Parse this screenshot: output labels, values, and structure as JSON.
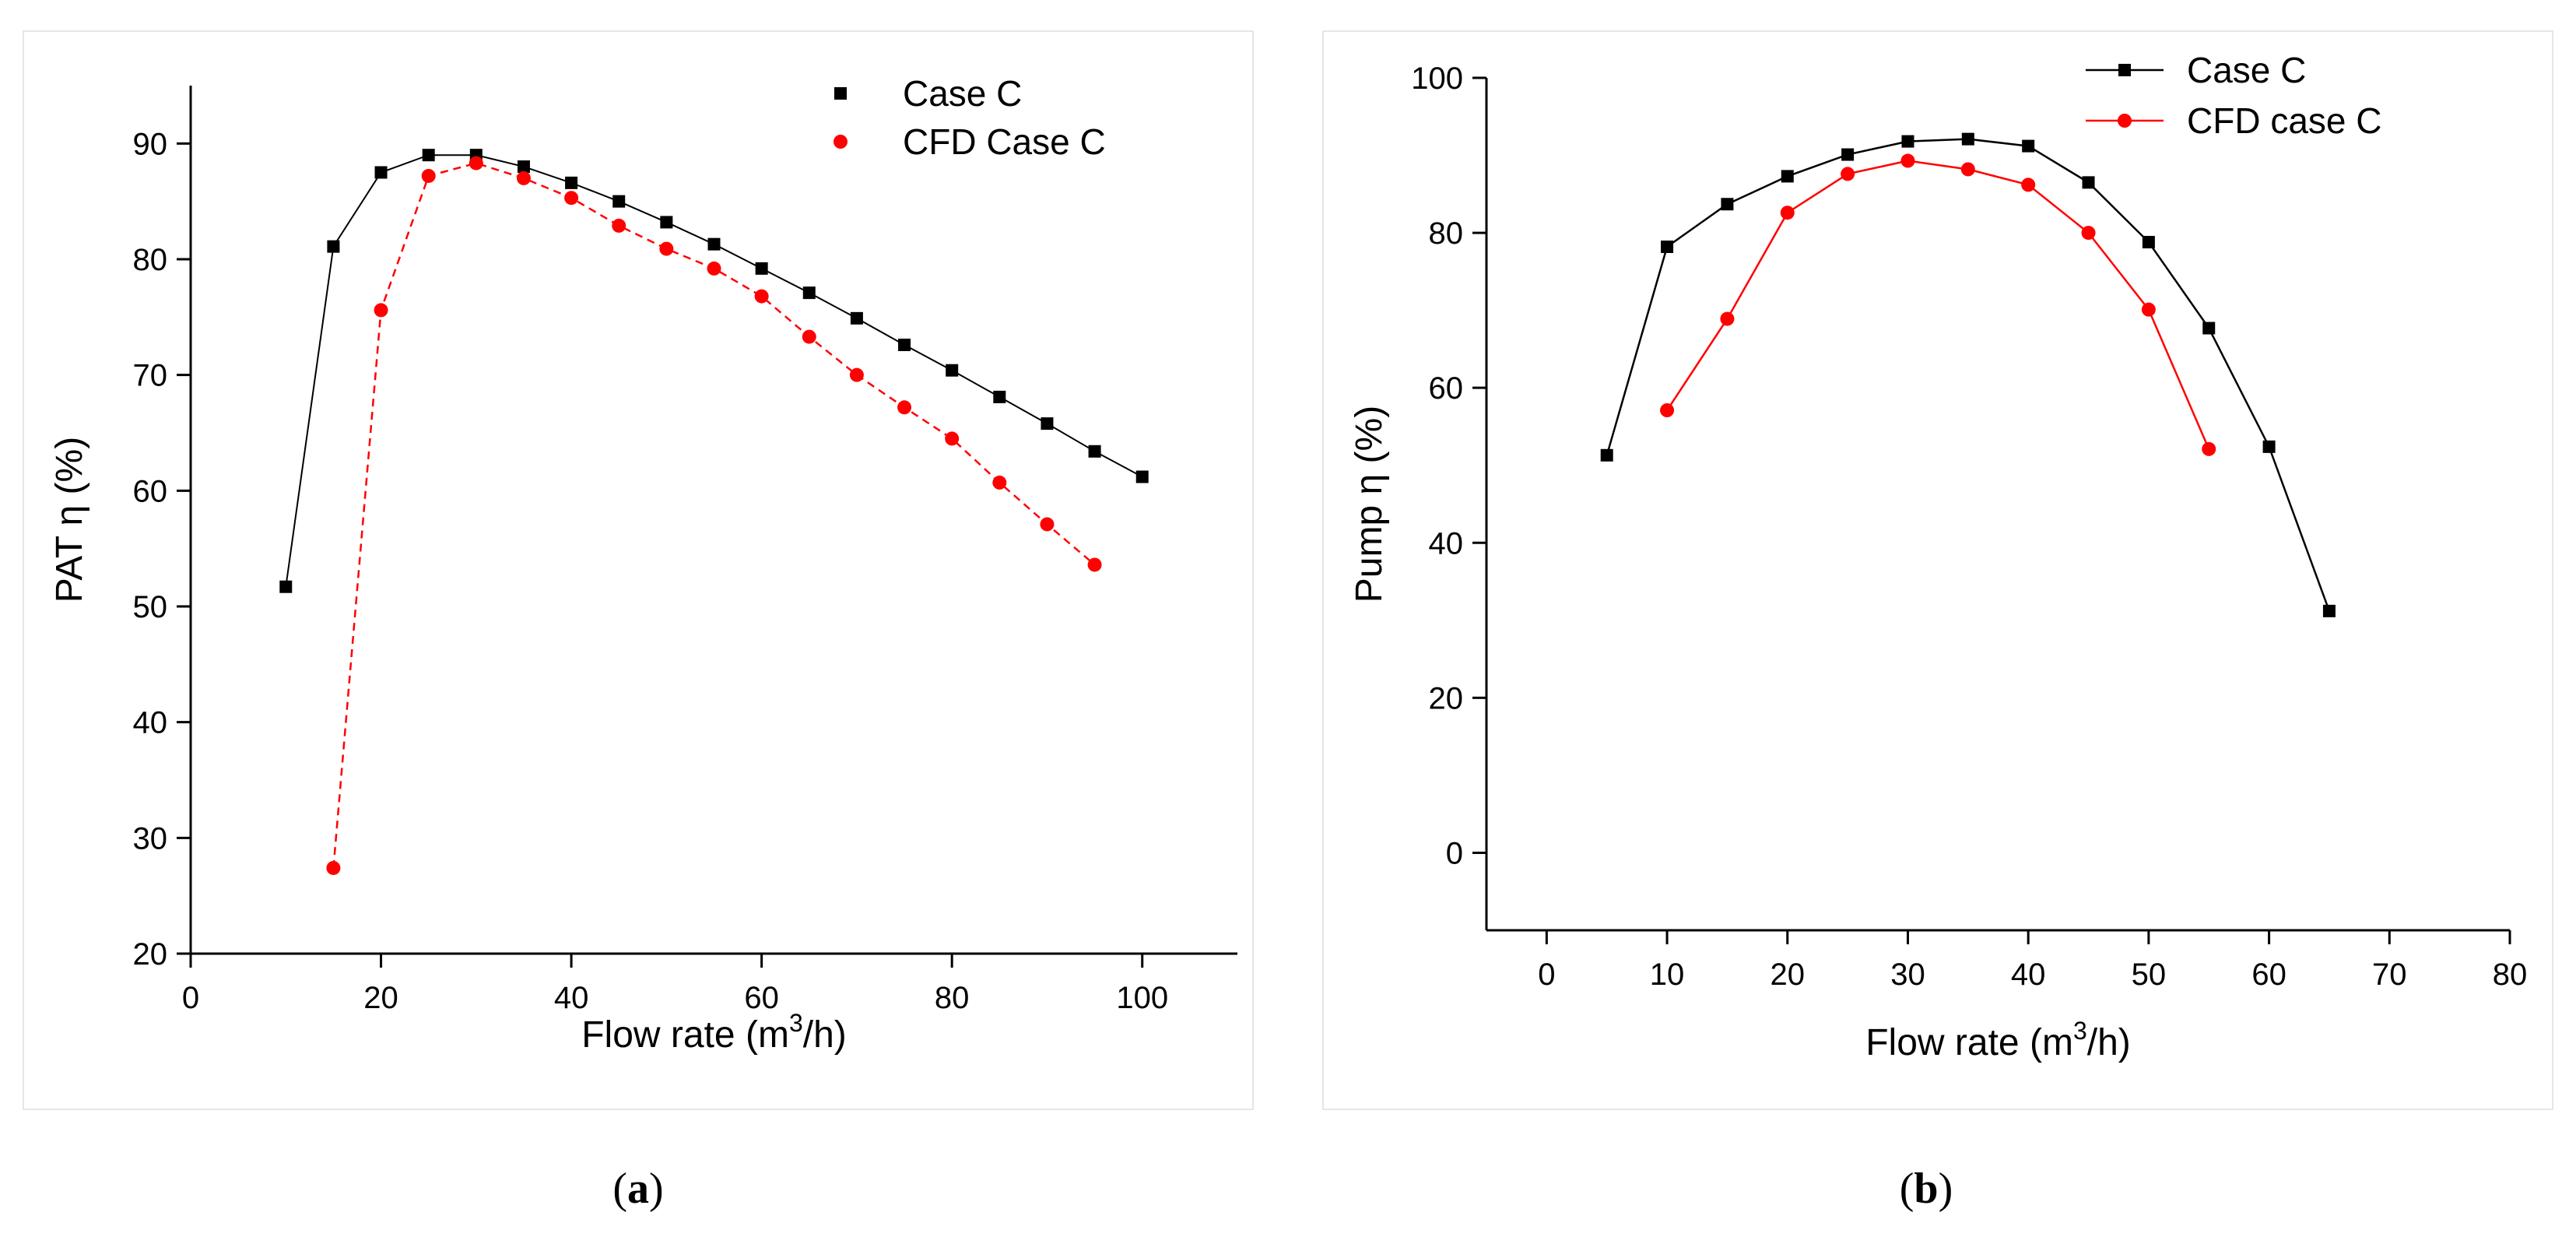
{
  "figure": {
    "captions": [
      "(a)",
      "(b)"
    ]
  },
  "chart_data": [
    {
      "type": "line",
      "panel_label": "a",
      "caption": {
        "open": "(",
        "letter": "a",
        "close": ")"
      },
      "xlabel": {
        "prefix": "Flow rate (m",
        "sup": "3",
        "suffix": "/h)"
      },
      "ylabel": "PAT η (%)",
      "xlim": [
        0,
        110
      ],
      "ylim": [
        20,
        95
      ],
      "xticks": [
        0,
        20,
        40,
        60,
        80,
        100
      ],
      "yticks": [
        20,
        30,
        40,
        50,
        60,
        70,
        80,
        90
      ],
      "legend_position": "top-right",
      "series": [
        {
          "name": "Case C",
          "color": "#000000",
          "marker": "square",
          "line": "solid-thin",
          "x": [
            10,
            15,
            20,
            25,
            30,
            35,
            40,
            45,
            50,
            55,
            60,
            65,
            70,
            75,
            80,
            85,
            90,
            95,
            100
          ],
          "y": [
            51.7,
            81.1,
            87.5,
            89.0,
            89.0,
            88.0,
            86.6,
            85.0,
            83.2,
            81.3,
            79.2,
            77.1,
            74.9,
            72.6,
            70.4,
            68.1,
            65.8,
            63.4,
            61.2
          ]
        },
        {
          "name": "CFD Case C",
          "color": "#ff0000",
          "marker": "circle",
          "line": "dashed",
          "x": [
            15,
            20,
            25,
            30,
            35,
            40,
            45,
            50,
            55,
            60,
            65,
            70,
            75,
            80,
            85,
            90,
            95
          ],
          "y": [
            27.4,
            75.6,
            87.2,
            88.3,
            87.0,
            85.3,
            82.9,
            80.9,
            79.2,
            76.8,
            73.3,
            70.0,
            67.2,
            64.5,
            60.7,
            57.1,
            53.6
          ]
        }
      ]
    },
    {
      "type": "line",
      "panel_label": "b",
      "caption": {
        "open": "(",
        "letter": "b",
        "close": ")"
      },
      "xlabel": {
        "prefix": "Flow rate (m",
        "sup": "3",
        "suffix": "/h)"
      },
      "ylabel": "Pump η (%)",
      "xlim": [
        -5,
        80
      ],
      "ylim": [
        -10,
        100
      ],
      "xticks": [
        0,
        10,
        20,
        30,
        40,
        50,
        60,
        70,
        80
      ],
      "yticks": [
        0,
        20,
        40,
        60,
        80,
        100
      ],
      "legend_position": "top-right",
      "series": [
        {
          "name": "Case C",
          "color": "#000000",
          "marker": "square",
          "line": "solid",
          "x": [
            5,
            10,
            15,
            20,
            25,
            30,
            35,
            40,
            45,
            50,
            55,
            60,
            65
          ],
          "y": [
            51.3,
            78.2,
            83.7,
            87.3,
            90.1,
            91.8,
            92.1,
            91.2,
            86.5,
            78.8,
            67.7,
            52.4,
            31.2
          ]
        },
        {
          "name": "CFD case C",
          "color": "#ff0000",
          "marker": "circle",
          "line": "solid",
          "x": [
            10,
            15,
            20,
            25,
            30,
            35,
            40,
            45,
            50,
            55
          ],
          "y": [
            57.1,
            68.9,
            82.6,
            87.6,
            89.3,
            88.2,
            86.2,
            80.0,
            70.1,
            52.1
          ]
        }
      ]
    }
  ]
}
